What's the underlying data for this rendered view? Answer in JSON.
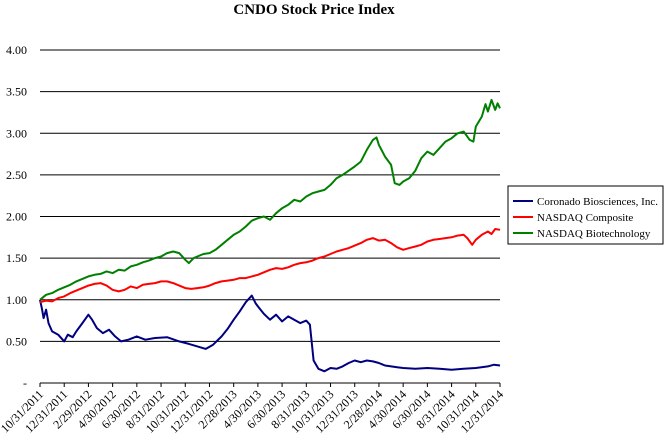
{
  "chart_data": {
    "type": "line",
    "title": "CNDO Stock Price Index",
    "xlabel": "",
    "ylabel": "",
    "ylim": [
      0,
      4
    ],
    "y_ticks": [
      {
        "value": 0,
        "label": "-"
      },
      {
        "value": 0.5,
        "label": "0.50"
      },
      {
        "value": 1.0,
        "label": "1.00"
      },
      {
        "value": 1.5,
        "label": "1.50"
      },
      {
        "value": 2.0,
        "label": "2.00"
      },
      {
        "value": 2.5,
        "label": "2.50"
      },
      {
        "value": 3.0,
        "label": "3.00"
      },
      {
        "value": 3.5,
        "label": "3.50"
      },
      {
        "value": 4.0,
        "label": "4.00"
      }
    ],
    "x_range": [
      0,
      38
    ],
    "x_ticks": [
      {
        "value": 0,
        "label": "10/31/2011"
      },
      {
        "value": 2,
        "label": "12/31/2011"
      },
      {
        "value": 4,
        "label": "2/29/2012"
      },
      {
        "value": 6,
        "label": "4/30/2012"
      },
      {
        "value": 8,
        "label": "6/30/2012"
      },
      {
        "value": 10,
        "label": "8/31/2012"
      },
      {
        "value": 12,
        "label": "10/31/2012"
      },
      {
        "value": 14,
        "label": "12/31/2012"
      },
      {
        "value": 16,
        "label": "2/28/2013"
      },
      {
        "value": 18,
        "label": "4/30/2013"
      },
      {
        "value": 20,
        "label": "6/30/2013"
      },
      {
        "value": 22,
        "label": "8/31/2013"
      },
      {
        "value": 24,
        "label": "10/31/2013"
      },
      {
        "value": 26,
        "label": "12/31/2013"
      },
      {
        "value": 28,
        "label": "2/28/2014"
      },
      {
        "value": 30,
        "label": "4/30/2014"
      },
      {
        "value": 32,
        "label": "6/30/2014"
      },
      {
        "value": 34,
        "label": "8/31/2014"
      },
      {
        "value": 36,
        "label": "10/31/2014"
      },
      {
        "value": 38,
        "label": "12/31/2014"
      }
    ],
    "grid": "horizontal",
    "legend_position": "right",
    "x_unit": "months since 10/31/2011",
    "series": [
      {
        "name": "Coronado Biosciences, Inc.",
        "color": "#000080",
        "points": [
          [
            0,
            1.0
          ],
          [
            0.15,
            0.9
          ],
          [
            0.3,
            0.78
          ],
          [
            0.5,
            0.88
          ],
          [
            0.7,
            0.72
          ],
          [
            1.0,
            0.62
          ],
          [
            1.5,
            0.58
          ],
          [
            2.0,
            0.5
          ],
          [
            2.3,
            0.58
          ],
          [
            2.7,
            0.55
          ],
          [
            3.0,
            0.62
          ],
          [
            3.5,
            0.72
          ],
          [
            4.0,
            0.82
          ],
          [
            4.3,
            0.76
          ],
          [
            4.7,
            0.66
          ],
          [
            5.2,
            0.6
          ],
          [
            5.7,
            0.64
          ],
          [
            6.2,
            0.56
          ],
          [
            6.7,
            0.5
          ],
          [
            7.3,
            0.52
          ],
          [
            8.0,
            0.56
          ],
          [
            8.7,
            0.52
          ],
          [
            9.5,
            0.54
          ],
          [
            10.5,
            0.55
          ],
          [
            11.5,
            0.5
          ],
          [
            12.3,
            0.47
          ],
          [
            13.0,
            0.44
          ],
          [
            13.7,
            0.41
          ],
          [
            14.3,
            0.46
          ],
          [
            15.0,
            0.56
          ],
          [
            15.5,
            0.65
          ],
          [
            16.0,
            0.76
          ],
          [
            16.5,
            0.86
          ],
          [
            17.0,
            0.97
          ],
          [
            17.5,
            1.05
          ],
          [
            17.8,
            0.96
          ],
          [
            18.0,
            0.92
          ],
          [
            18.5,
            0.83
          ],
          [
            19.0,
            0.76
          ],
          [
            19.5,
            0.82
          ],
          [
            20.0,
            0.74
          ],
          [
            20.5,
            0.8
          ],
          [
            21.0,
            0.76
          ],
          [
            21.5,
            0.72
          ],
          [
            22.0,
            0.75
          ],
          [
            22.3,
            0.7
          ],
          [
            22.6,
            0.27
          ],
          [
            23.0,
            0.17
          ],
          [
            23.5,
            0.14
          ],
          [
            24.0,
            0.18
          ],
          [
            24.5,
            0.17
          ],
          [
            25.0,
            0.2
          ],
          [
            25.5,
            0.24
          ],
          [
            26.0,
            0.27
          ],
          [
            26.5,
            0.25
          ],
          [
            27.0,
            0.27
          ],
          [
            27.5,
            0.26
          ],
          [
            28.0,
            0.24
          ],
          [
            28.5,
            0.21
          ],
          [
            29.0,
            0.2
          ],
          [
            29.5,
            0.19
          ],
          [
            30.0,
            0.18
          ],
          [
            31.0,
            0.17
          ],
          [
            32.0,
            0.18
          ],
          [
            33.0,
            0.17
          ],
          [
            34.0,
            0.16
          ],
          [
            35.0,
            0.17
          ],
          [
            36.0,
            0.18
          ],
          [
            37.0,
            0.2
          ],
          [
            37.5,
            0.22
          ],
          [
            38.0,
            0.21
          ]
        ]
      },
      {
        "name": "NASDAQ Composite",
        "color": "#ff0000",
        "points": [
          [
            0,
            0.97
          ],
          [
            0.5,
            0.99
          ],
          [
            1.0,
            0.98
          ],
          [
            1.5,
            1.02
          ],
          [
            2.0,
            1.04
          ],
          [
            2.5,
            1.08
          ],
          [
            3.0,
            1.11
          ],
          [
            3.5,
            1.14
          ],
          [
            4.0,
            1.17
          ],
          [
            4.5,
            1.19
          ],
          [
            5.0,
            1.2
          ],
          [
            5.5,
            1.17
          ],
          [
            6.0,
            1.12
          ],
          [
            6.5,
            1.1
          ],
          [
            7.0,
            1.12
          ],
          [
            7.5,
            1.16
          ],
          [
            8.0,
            1.14
          ],
          [
            8.5,
            1.18
          ],
          [
            9.0,
            1.19
          ],
          [
            9.5,
            1.2
          ],
          [
            10.0,
            1.22
          ],
          [
            10.5,
            1.22
          ],
          [
            11.0,
            1.2
          ],
          [
            11.5,
            1.17
          ],
          [
            12.0,
            1.14
          ],
          [
            12.5,
            1.13
          ],
          [
            13.0,
            1.14
          ],
          [
            13.5,
            1.15
          ],
          [
            14.0,
            1.17
          ],
          [
            14.5,
            1.2
          ],
          [
            15.0,
            1.22
          ],
          [
            15.5,
            1.23
          ],
          [
            16.0,
            1.24
          ],
          [
            16.5,
            1.26
          ],
          [
            17.0,
            1.26
          ],
          [
            17.5,
            1.28
          ],
          [
            18.0,
            1.3
          ],
          [
            18.5,
            1.33
          ],
          [
            19.0,
            1.36
          ],
          [
            19.5,
            1.38
          ],
          [
            20.0,
            1.37
          ],
          [
            20.5,
            1.39
          ],
          [
            21.0,
            1.42
          ],
          [
            21.5,
            1.44
          ],
          [
            22.0,
            1.45
          ],
          [
            22.5,
            1.47
          ],
          [
            23.0,
            1.5
          ],
          [
            23.5,
            1.52
          ],
          [
            24.0,
            1.55
          ],
          [
            24.5,
            1.58
          ],
          [
            25.0,
            1.6
          ],
          [
            25.5,
            1.62
          ],
          [
            26.0,
            1.65
          ],
          [
            26.5,
            1.68
          ],
          [
            27.0,
            1.72
          ],
          [
            27.5,
            1.74
          ],
          [
            28.0,
            1.71
          ],
          [
            28.5,
            1.72
          ],
          [
            29.0,
            1.68
          ],
          [
            29.5,
            1.63
          ],
          [
            30.0,
            1.6
          ],
          [
            30.5,
            1.62
          ],
          [
            31.0,
            1.64
          ],
          [
            31.5,
            1.66
          ],
          [
            32.0,
            1.7
          ],
          [
            32.5,
            1.72
          ],
          [
            33.0,
            1.73
          ],
          [
            33.5,
            1.74
          ],
          [
            34.0,
            1.75
          ],
          [
            34.5,
            1.77
          ],
          [
            35.0,
            1.78
          ],
          [
            35.3,
            1.74
          ],
          [
            35.7,
            1.66
          ],
          [
            36.0,
            1.72
          ],
          [
            36.5,
            1.78
          ],
          [
            37.0,
            1.82
          ],
          [
            37.3,
            1.79
          ],
          [
            37.6,
            1.85
          ],
          [
            38.0,
            1.84
          ]
        ]
      },
      {
        "name": "NASDAQ Biotechnology",
        "color": "#008000",
        "points": [
          [
            0,
            1.0
          ],
          [
            0.5,
            1.06
          ],
          [
            1.0,
            1.08
          ],
          [
            1.5,
            1.12
          ],
          [
            2.0,
            1.15
          ],
          [
            2.5,
            1.18
          ],
          [
            3.0,
            1.22
          ],
          [
            3.5,
            1.25
          ],
          [
            4.0,
            1.28
          ],
          [
            4.5,
            1.3
          ],
          [
            5.0,
            1.31
          ],
          [
            5.5,
            1.34
          ],
          [
            6.0,
            1.32
          ],
          [
            6.5,
            1.36
          ],
          [
            7.0,
            1.35
          ],
          [
            7.5,
            1.4
          ],
          [
            8.0,
            1.42
          ],
          [
            8.5,
            1.45
          ],
          [
            9.0,
            1.47
          ],
          [
            9.5,
            1.5
          ],
          [
            10.0,
            1.52
          ],
          [
            10.5,
            1.56
          ],
          [
            11.0,
            1.58
          ],
          [
            11.5,
            1.56
          ],
          [
            12.0,
            1.48
          ],
          [
            12.3,
            1.44
          ],
          [
            12.7,
            1.5
          ],
          [
            13.0,
            1.52
          ],
          [
            13.5,
            1.55
          ],
          [
            14.0,
            1.56
          ],
          [
            14.5,
            1.6
          ],
          [
            15.0,
            1.66
          ],
          [
            15.5,
            1.72
          ],
          [
            16.0,
            1.78
          ],
          [
            16.5,
            1.82
          ],
          [
            17.0,
            1.88
          ],
          [
            17.5,
            1.95
          ],
          [
            18.0,
            1.98
          ],
          [
            18.5,
            2.0
          ],
          [
            19.0,
            1.96
          ],
          [
            19.5,
            2.04
          ],
          [
            20.0,
            2.1
          ],
          [
            20.5,
            2.14
          ],
          [
            21.0,
            2.2
          ],
          [
            21.5,
            2.18
          ],
          [
            22.0,
            2.24
          ],
          [
            22.5,
            2.28
          ],
          [
            23.0,
            2.3
          ],
          [
            23.5,
            2.32
          ],
          [
            24.0,
            2.38
          ],
          [
            24.5,
            2.46
          ],
          [
            25.0,
            2.5
          ],
          [
            25.5,
            2.55
          ],
          [
            26.0,
            2.6
          ],
          [
            26.5,
            2.66
          ],
          [
            27.0,
            2.8
          ],
          [
            27.5,
            2.92
          ],
          [
            27.8,
            2.95
          ],
          [
            28.0,
            2.86
          ],
          [
            28.5,
            2.72
          ],
          [
            29.0,
            2.62
          ],
          [
            29.3,
            2.4
          ],
          [
            29.7,
            2.38
          ],
          [
            30.0,
            2.42
          ],
          [
            30.5,
            2.46
          ],
          [
            31.0,
            2.55
          ],
          [
            31.5,
            2.7
          ],
          [
            32.0,
            2.78
          ],
          [
            32.5,
            2.74
          ],
          [
            33.0,
            2.82
          ],
          [
            33.5,
            2.9
          ],
          [
            34.0,
            2.94
          ],
          [
            34.5,
            3.0
          ],
          [
            35.0,
            3.02
          ],
          [
            35.5,
            2.92
          ],
          [
            35.8,
            2.9
          ],
          [
            36.0,
            3.08
          ],
          [
            36.5,
            3.2
          ],
          [
            36.8,
            3.35
          ],
          [
            37.0,
            3.26
          ],
          [
            37.3,
            3.4
          ],
          [
            37.6,
            3.28
          ],
          [
            37.8,
            3.36
          ],
          [
            38.0,
            3.3
          ]
        ]
      }
    ]
  }
}
